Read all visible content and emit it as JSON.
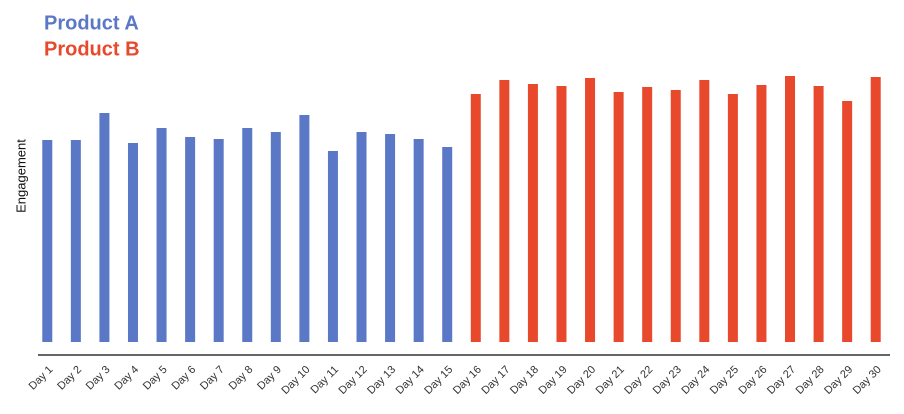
{
  "chart_data": {
    "type": "bar",
    "y_label": "Engagement",
    "categories": [
      "Day 1",
      "Day 2",
      "Day 3",
      "Day 4",
      "Day 5",
      "Day 6",
      "Day 7",
      "Day 8",
      "Day 9",
      "Day 10",
      "Day 11",
      "Day 12",
      "Day 13",
      "Day 14",
      "Day 15",
      "Day 16",
      "Day 17",
      "Day 18",
      "Day 19",
      "Day 20",
      "Day 21",
      "Day 22",
      "Day 23",
      "Day 24",
      "Day 25",
      "Day 26",
      "Day 27",
      "Day 28",
      "Day 29",
      "Day 30"
    ],
    "series": [
      {
        "name": "Product A",
        "color": "#5b78c7",
        "values": [
          202,
          202,
          229,
          199,
          214,
          205,
          203,
          214,
          210,
          227,
          191,
          210,
          208,
          203,
          195,
          null,
          null,
          null,
          null,
          null,
          null,
          null,
          null,
          null,
          null,
          null,
          null,
          null,
          null,
          null
        ]
      },
      {
        "name": "Product B",
        "color": "#e8482c",
        "values": [
          null,
          null,
          null,
          null,
          null,
          null,
          null,
          null,
          null,
          null,
          null,
          null,
          null,
          null,
          null,
          248,
          262,
          258,
          256,
          264,
          250,
          255,
          252,
          262,
          248,
          257,
          266,
          256,
          241,
          265
        ]
      }
    ],
    "ylim": [
      0,
      280
    ]
  }
}
